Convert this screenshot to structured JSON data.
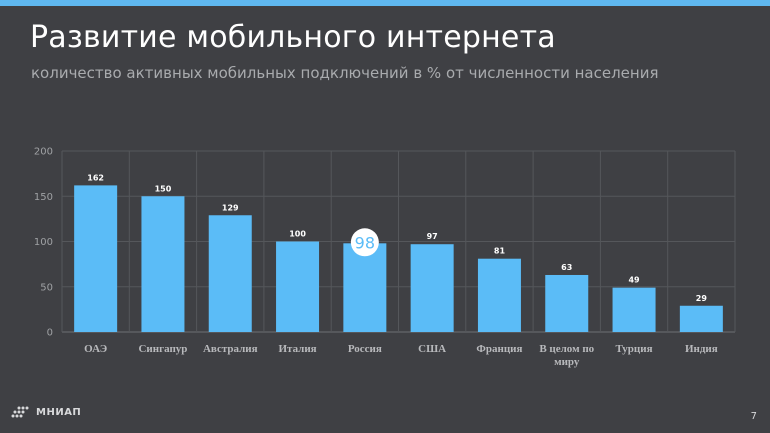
{
  "header": {
    "title": "Развитие мобильного интернета",
    "subtitle": "количество активных мобильных подключений в % от численности населения"
  },
  "chart_data": {
    "type": "bar",
    "categories": [
      "ОАЭ",
      "Сингапур",
      "Австралия",
      "Италия",
      "Россия",
      "США",
      "Франция",
      "В целом по миру",
      "Турция",
      "Индия"
    ],
    "category_lines": [
      [
        "ОАЭ"
      ],
      [
        "Сингапур"
      ],
      [
        "Австралия"
      ],
      [
        "Италия"
      ],
      [
        "Россия"
      ],
      [
        "США"
      ],
      [
        "Франция"
      ],
      [
        "В целом по",
        "миру"
      ],
      [
        "Турция"
      ],
      [
        "Индия"
      ]
    ],
    "values": [
      162,
      150,
      129,
      100,
      98,
      97,
      81,
      63,
      49,
      29
    ],
    "highlight_category": "Россия",
    "ylim": [
      0,
      200
    ],
    "yticks": [
      0,
      50,
      100,
      150,
      200
    ],
    "grid": true,
    "bar_color": "#5bbcf7",
    "highlight_label_color": "#5bbcf7"
  },
  "footer": {
    "logo_text": "МНИАП",
    "page_number": "7"
  }
}
